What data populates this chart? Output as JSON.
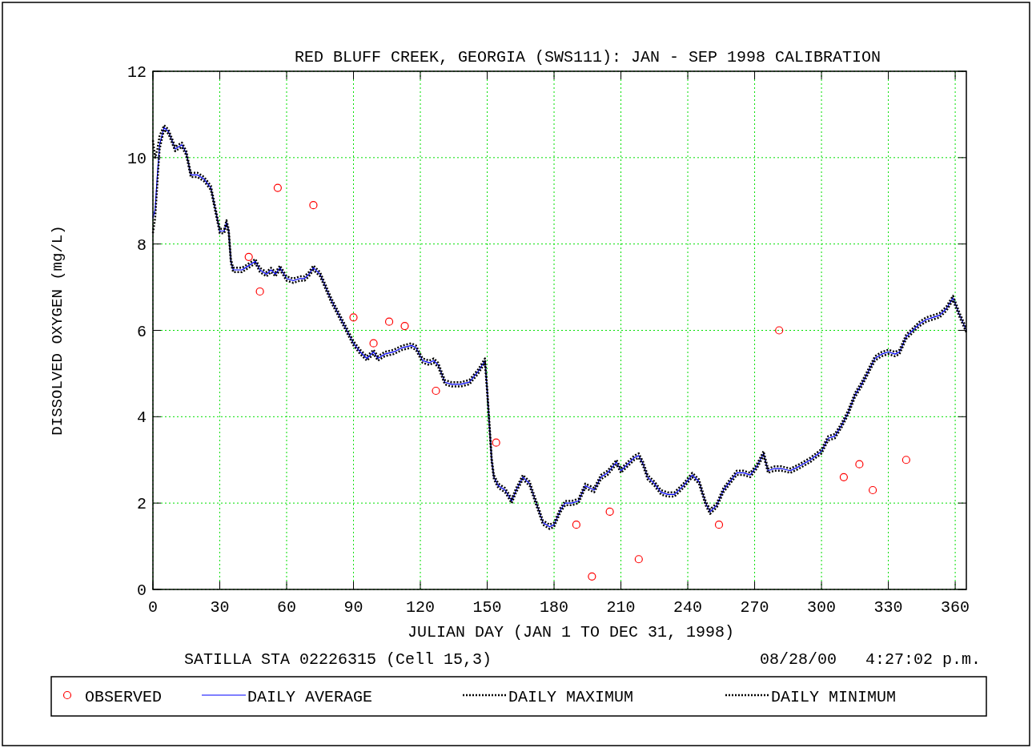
{
  "chart_data": {
    "type": "line",
    "title": "RED BLUFF CREEK, GEORGIA (SWS111): JAN - SEP 1998 CALIBRATION",
    "xlabel": "JULIAN DAY (JAN 1 TO DEC 31, 1998)",
    "ylabel": "DISSOLVED OXYGEN (mg/L)",
    "annotations": [
      "SATILLA STA 02226315 (Cell 15,3)",
      "08/28/00   4:27:02 p.m."
    ],
    "xlim": [
      0,
      365
    ],
    "xticks": [
      0,
      30,
      60,
      90,
      120,
      150,
      180,
      210,
      240,
      270,
      300,
      330,
      360
    ],
    "ylim": [
      0,
      12
    ],
    "yticks": [
      0,
      2,
      4,
      6,
      8,
      10,
      12
    ],
    "grid": true,
    "legend": "bottom",
    "series": [
      {
        "name": "OBSERVED",
        "type": "scatter",
        "marker": "circle",
        "color": "#ff0000",
        "x": [
          43,
          48,
          56,
          72,
          90,
          99,
          106,
          113,
          127,
          154,
          190,
          197,
          205,
          218,
          254,
          281,
          310,
          317,
          323,
          338
        ],
        "values": [
          7.7,
          6.9,
          9.3,
          8.9,
          6.3,
          5.7,
          6.2,
          6.1,
          4.6,
          3.4,
          1.5,
          0.3,
          1.8,
          0.7,
          1.5,
          6.0,
          2.6,
          2.9,
          2.3,
          3.0
        ]
      },
      {
        "name": "DAILY AVERAGE",
        "marker": "none",
        "line_style": "solid",
        "color": "#0000ff",
        "x": [
          0,
          1,
          2,
          3,
          5,
          7,
          10,
          13,
          15,
          17,
          20,
          23,
          26,
          28,
          30,
          32,
          33,
          34,
          35,
          36,
          40,
          43,
          46,
          48,
          51,
          53,
          55,
          57,
          60,
          63,
          66,
          68,
          70,
          72,
          75,
          80,
          85,
          90,
          93,
          96,
          99,
          101,
          104,
          108,
          112,
          116,
          118,
          121,
          124,
          126,
          128,
          131,
          134,
          138,
          142,
          146,
          149,
          150,
          151,
          152,
          153,
          155,
          158,
          161,
          163,
          166,
          169,
          172,
          175,
          178,
          180,
          183,
          185,
          188,
          191,
          194,
          196,
          198,
          201,
          204,
          208,
          210,
          213,
          216,
          218,
          220,
          222,
          225,
          228,
          231,
          234,
          238,
          242,
          245,
          248,
          250,
          253,
          256,
          259,
          262,
          265,
          268,
          271,
          274,
          276,
          279,
          282,
          286,
          290,
          295,
          300,
          303,
          306,
          309,
          312,
          315,
          318,
          321,
          324,
          327,
          330,
          333,
          335,
          338,
          341,
          344,
          347,
          350,
          353,
          356,
          359,
          362,
          365
        ],
        "values": [
          8.6,
          8.8,
          9.6,
          10.3,
          10.7,
          10.6,
          10.2,
          10.3,
          10.1,
          9.6,
          9.6,
          9.5,
          9.3,
          8.8,
          8.3,
          8.3,
          8.5,
          8.3,
          7.6,
          7.4,
          7.4,
          7.5,
          7.6,
          7.4,
          7.3,
          7.4,
          7.3,
          7.45,
          7.2,
          7.15,
          7.2,
          7.2,
          7.3,
          7.45,
          7.3,
          6.7,
          6.2,
          5.7,
          5.5,
          5.35,
          5.5,
          5.35,
          5.45,
          5.5,
          5.6,
          5.65,
          5.6,
          5.3,
          5.25,
          5.3,
          5.2,
          4.8,
          4.75,
          4.75,
          4.8,
          5.05,
          5.3,
          4.6,
          3.8,
          3.0,
          2.6,
          2.4,
          2.3,
          2.05,
          2.3,
          2.6,
          2.45,
          2.0,
          1.55,
          1.45,
          1.5,
          1.85,
          2.0,
          2.0,
          2.05,
          2.4,
          2.35,
          2.3,
          2.6,
          2.7,
          2.95,
          2.75,
          2.9,
          3.05,
          3.1,
          2.9,
          2.6,
          2.45,
          2.25,
          2.2,
          2.2,
          2.4,
          2.65,
          2.5,
          2.0,
          1.8,
          1.95,
          2.3,
          2.5,
          2.7,
          2.7,
          2.65,
          2.85,
          3.15,
          2.75,
          2.8,
          2.8,
          2.75,
          2.85,
          3.0,
          3.2,
          3.5,
          3.55,
          3.8,
          4.1,
          4.5,
          4.75,
          5.05,
          5.35,
          5.45,
          5.5,
          5.45,
          5.5,
          5.85,
          6.0,
          6.15,
          6.25,
          6.3,
          6.35,
          6.5,
          6.75,
          6.35,
          6.0
        ]
      },
      {
        "name": "DAILY MAXIMUM",
        "marker": "none",
        "line_style": "dotted",
        "color": "#000000",
        "x": [
          0,
          1,
          2,
          3,
          5,
          7,
          10,
          13,
          15,
          17,
          20,
          23,
          26,
          28,
          30,
          32,
          33,
          34,
          35,
          36,
          40,
          43,
          46,
          48,
          51,
          53,
          55,
          57,
          60,
          63,
          66,
          68,
          70,
          72,
          75,
          80,
          85,
          90,
          93,
          96,
          99,
          101,
          104,
          108,
          112,
          116,
          118,
          121,
          124,
          126,
          128,
          131,
          134,
          138,
          142,
          146,
          149,
          150,
          151,
          152,
          153,
          155,
          158,
          161,
          163,
          166,
          169,
          172,
          175,
          178,
          180,
          183,
          185,
          188,
          191,
          194,
          196,
          198,
          201,
          204,
          208,
          210,
          213,
          216,
          218,
          220,
          222,
          225,
          228,
          231,
          234,
          238,
          242,
          245,
          248,
          250,
          253,
          256,
          259,
          262,
          265,
          268,
          271,
          274,
          276,
          279,
          282,
          286,
          290,
          295,
          300,
          303,
          306,
          309,
          312,
          315,
          318,
          321,
          324,
          327,
          330,
          333,
          335,
          338,
          341,
          344,
          347,
          350,
          353,
          356,
          359,
          362,
          365
        ],
        "values": [
          10.4,
          10.0,
          10.2,
          10.5,
          10.75,
          10.65,
          10.25,
          10.35,
          10.15,
          9.65,
          9.65,
          9.55,
          9.35,
          8.85,
          8.35,
          8.35,
          8.55,
          8.35,
          7.65,
          7.45,
          7.45,
          7.55,
          7.65,
          7.45,
          7.35,
          7.45,
          7.35,
          7.5,
          7.25,
          7.2,
          7.25,
          7.25,
          7.35,
          7.5,
          7.35,
          6.75,
          6.25,
          5.75,
          5.55,
          5.4,
          5.55,
          5.4,
          5.5,
          5.55,
          5.65,
          5.7,
          5.65,
          5.35,
          5.3,
          5.35,
          5.25,
          4.85,
          4.8,
          4.8,
          4.85,
          5.1,
          5.35,
          4.65,
          3.85,
          3.05,
          2.65,
          2.45,
          2.35,
          2.1,
          2.35,
          2.65,
          2.5,
          2.05,
          1.6,
          1.5,
          1.55,
          1.9,
          2.05,
          2.05,
          2.1,
          2.45,
          2.4,
          2.35,
          2.65,
          2.75,
          3.0,
          2.8,
          2.95,
          3.1,
          3.15,
          2.95,
          2.65,
          2.5,
          2.3,
          2.25,
          2.25,
          2.45,
          2.7,
          2.55,
          2.05,
          1.85,
          2.0,
          2.35,
          2.55,
          2.75,
          2.75,
          2.7,
          2.9,
          3.2,
          2.8,
          2.85,
          2.85,
          2.8,
          2.9,
          3.05,
          3.25,
          3.55,
          3.6,
          3.85,
          4.15,
          4.55,
          4.8,
          5.1,
          5.4,
          5.5,
          5.55,
          5.5,
          5.55,
          5.9,
          6.05,
          6.2,
          6.3,
          6.35,
          6.4,
          6.55,
          6.8,
          6.4,
          6.05
        ]
      },
      {
        "name": "DAILY MINIMUM",
        "marker": "none",
        "line_style": "dotted",
        "color": "#000000",
        "x": [
          0,
          1,
          2,
          3,
          5,
          7,
          10,
          13,
          15,
          17,
          20,
          23,
          26,
          28,
          30,
          32,
          33,
          34,
          35,
          36,
          40,
          43,
          46,
          48,
          51,
          53,
          55,
          57,
          60,
          63,
          66,
          68,
          70,
          72,
          75,
          80,
          85,
          90,
          93,
          96,
          99,
          101,
          104,
          108,
          112,
          116,
          118,
          121,
          124,
          126,
          128,
          131,
          134,
          138,
          142,
          146,
          149,
          150,
          151,
          152,
          153,
          155,
          158,
          161,
          163,
          166,
          169,
          172,
          175,
          178,
          180,
          183,
          185,
          188,
          191,
          194,
          196,
          198,
          201,
          204,
          208,
          210,
          213,
          216,
          218,
          220,
          222,
          225,
          228,
          231,
          234,
          238,
          242,
          245,
          248,
          250,
          253,
          256,
          259,
          262,
          265,
          268,
          271,
          274,
          276,
          279,
          282,
          286,
          290,
          295,
          300,
          303,
          306,
          309,
          312,
          315,
          318,
          321,
          324,
          327,
          330,
          333,
          335,
          338,
          341,
          344,
          347,
          350,
          353,
          356,
          359,
          362,
          365
        ],
        "values": [
          8.25,
          8.6,
          9.4,
          10.2,
          10.65,
          10.55,
          10.15,
          10.25,
          10.05,
          9.55,
          9.55,
          9.45,
          9.25,
          8.75,
          8.25,
          8.25,
          8.45,
          8.25,
          7.55,
          7.35,
          7.35,
          7.45,
          7.55,
          7.35,
          7.25,
          7.35,
          7.25,
          7.4,
          7.15,
          7.1,
          7.15,
          7.15,
          7.25,
          7.4,
          7.25,
          6.65,
          6.15,
          5.65,
          5.45,
          5.3,
          5.45,
          5.3,
          5.4,
          5.45,
          5.55,
          5.6,
          5.55,
          5.25,
          5.2,
          5.25,
          5.15,
          4.75,
          4.7,
          4.7,
          4.75,
          5.0,
          5.25,
          4.55,
          3.75,
          2.95,
          2.55,
          2.35,
          2.25,
          2.0,
          2.25,
          2.55,
          2.4,
          1.95,
          1.5,
          1.4,
          1.45,
          1.8,
          1.95,
          1.95,
          2.0,
          2.35,
          2.3,
          2.25,
          2.55,
          2.65,
          2.9,
          2.7,
          2.85,
          3.0,
          3.05,
          2.85,
          2.55,
          2.4,
          2.2,
          2.15,
          2.15,
          2.35,
          2.6,
          2.45,
          1.95,
          1.75,
          1.9,
          2.25,
          2.45,
          2.65,
          2.65,
          2.6,
          2.8,
          3.1,
          2.7,
          2.75,
          2.75,
          2.7,
          2.8,
          2.95,
          3.15,
          3.45,
          3.5,
          3.75,
          4.05,
          4.45,
          4.7,
          5.0,
          5.3,
          5.4,
          5.45,
          5.4,
          5.45,
          5.8,
          5.95,
          6.1,
          6.2,
          6.25,
          6.3,
          6.45,
          6.7,
          6.3,
          5.95
        ]
      }
    ]
  }
}
